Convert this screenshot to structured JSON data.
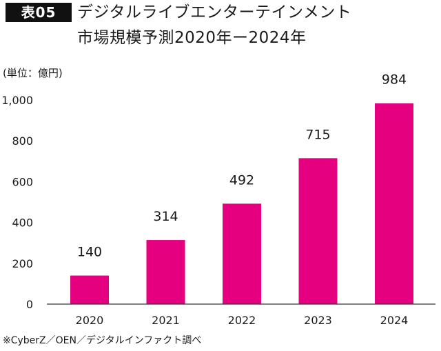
{
  "header": {
    "badge": "表05",
    "title_line1": "デジタルライブエンターテインメント",
    "title_line2": "市場規模予測2020年ー2024年"
  },
  "unit_label": "(単位：億円)",
  "source": "※CyberZ／OEN／デジタルインファクト調べ",
  "colors": {
    "bar": "#e5007f",
    "axis": "#333333",
    "text": "#1a1a1a"
  },
  "chart_data": {
    "type": "bar",
    "title": "デジタルライブエンターテインメント市場規模予測2020年ー2024年",
    "ylabel": "(単位：億円)",
    "xlabel": "",
    "categories": [
      "2020",
      "2021",
      "2022",
      "2023",
      "2024"
    ],
    "values": [
      140,
      314,
      492,
      715,
      984
    ],
    "value_labels": [
      "140",
      "314",
      "492",
      "715",
      "984"
    ],
    "yticks": [
      0,
      200,
      400,
      600,
      800,
      1000
    ],
    "ytick_labels": [
      "0",
      "200",
      "400",
      "600",
      "800",
      "1,000"
    ],
    "ylim": [
      0,
      1000
    ],
    "grid": false,
    "legend": "none"
  }
}
